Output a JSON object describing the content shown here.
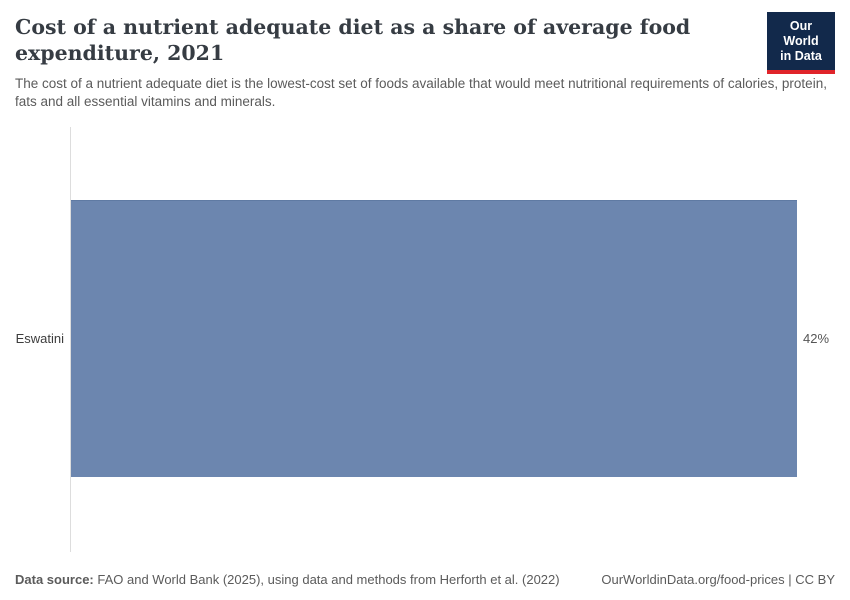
{
  "header": {
    "title": "Cost of a nutrient adequate diet as a share of average food expenditure, 2021",
    "subtitle": "The cost of a nutrient adequate diet is the lowest-cost set of foods available that would meet nutritional requirements of calories, protein, fats and all essential vitamins and minerals.",
    "logo": {
      "line1": "Our World",
      "line2": "in Data"
    }
  },
  "chart_data": {
    "type": "bar",
    "orientation": "horizontal",
    "title": "Cost of a nutrient adequate diet as a share of average food expenditure, 2021",
    "categories": [
      "Eswatini"
    ],
    "values": [
      42
    ],
    "value_labels": [
      "42%"
    ],
    "xlim": [
      0,
      42
    ],
    "xlabel": "",
    "ylabel": "",
    "grid": false,
    "legend": false
  },
  "footer": {
    "source_label": "Data source:",
    "source_text": " FAO and World Bank (2025), using data and methods from Herforth et al. (2022)",
    "right_text": "OurWorldinData.org/food-prices | CC BY"
  },
  "colors": {
    "bar": "#6c86af",
    "title_text": "#363c43",
    "body_text": "#5b5b5b",
    "axis_line": "#dddddd",
    "logo_background": "#12294b",
    "logo_accent": "#e0242a"
  }
}
